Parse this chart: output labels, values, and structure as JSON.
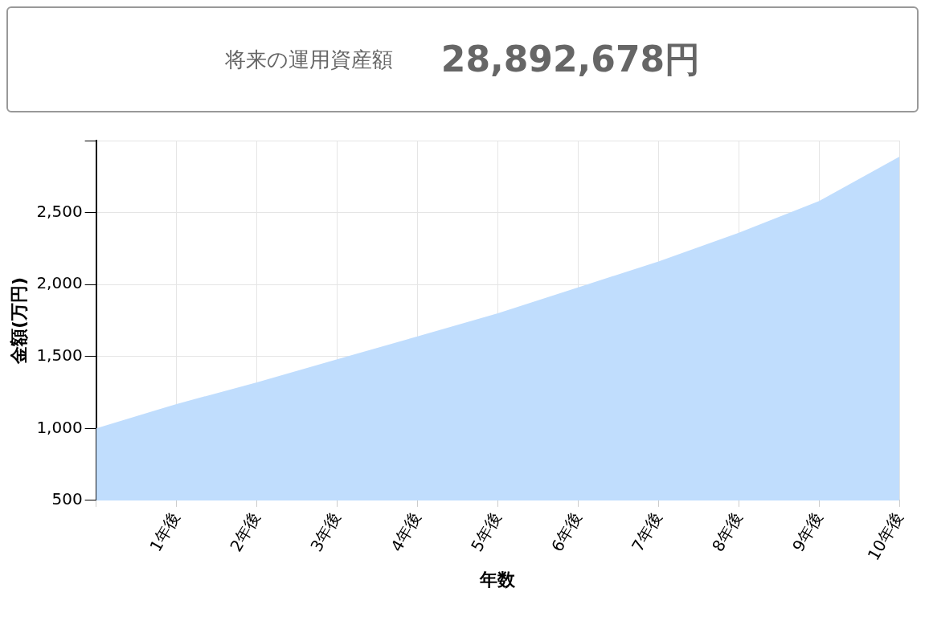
{
  "chart_data": {
    "type": "area",
    "title": "将来の運用資産額",
    "subtitle": "28,892,678円",
    "xlabel": "年数",
    "ylabel": "金額(万円)",
    "categories": [
      null,
      "1年後",
      "2年後",
      "3年後",
      "4年後",
      "5年後",
      "6年後",
      "7年後",
      "8年後",
      "9年後",
      "10年後"
    ],
    "series": [
      {
        "color": "#c0ddfd",
        "values": [
          1000,
          1170,
          1320,
          1480,
          1640,
          1800,
          1980,
          2160,
          2360,
          2580,
          2889
        ]
      }
    ],
    "ylim": [
      500,
      3000
    ],
    "yticks": [
      500,
      {
        "value": 1000,
        "label": "1,000"
      },
      {
        "value": 1500,
        "label": "1,500"
      },
      {
        "value": 2000,
        "label": "2,000"
      },
      {
        "value": 2500,
        "label": "2,500"
      },
      {
        "value": 3000,
        "label": null
      }
    ],
    "grid": true,
    "legend": false
  }
}
